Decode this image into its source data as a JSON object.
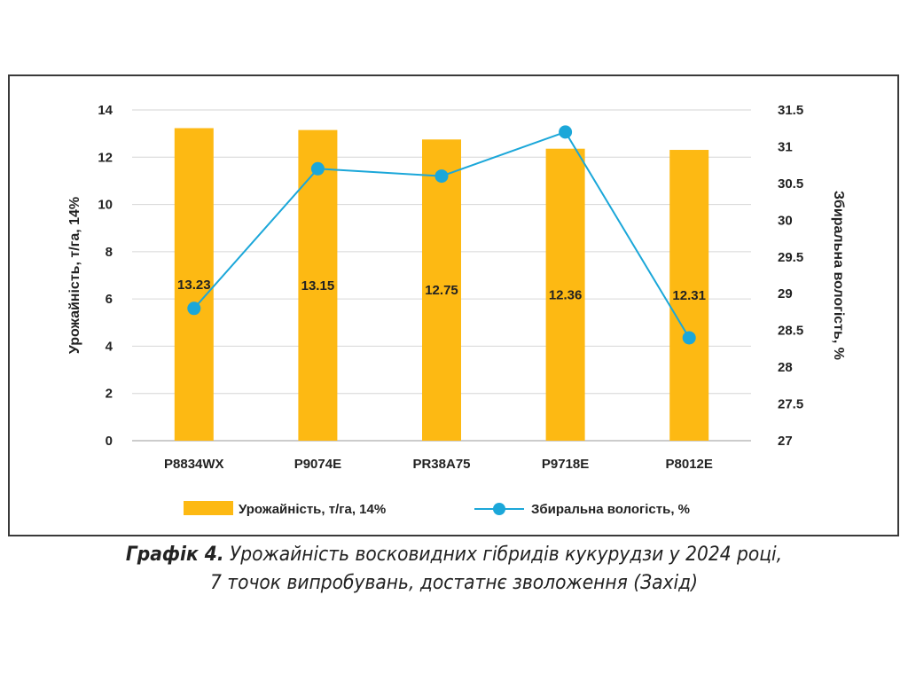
{
  "chart_data": {
    "type": "bar",
    "categories": [
      "P8834WX",
      "P9074E",
      "PR38A75",
      "P9718E",
      "P8012E"
    ],
    "series": [
      {
        "name": "Урожайність, т/га, 14%",
        "type": "bar",
        "axis": "left",
        "color": "#FDB913",
        "values": [
          13.23,
          13.15,
          12.75,
          12.36,
          12.31
        ],
        "data_labels": [
          "13.23",
          "13.15",
          "12.75",
          "12.36",
          "12.31"
        ]
      },
      {
        "name": "Збиральна вологість, %",
        "type": "line",
        "axis": "right",
        "color": "#1BA7D9",
        "values": [
          28.8,
          30.7,
          30.6,
          31.2,
          28.4
        ]
      }
    ],
    "ylabel": "Урожайність, т/га, 14%",
    "ylabel_right": "Збиральна вологість, %",
    "ylim": [
      0,
      14
    ],
    "ylim_right": [
      27,
      31.5
    ],
    "yticks": [
      "0",
      "2",
      "4",
      "6",
      "8",
      "10",
      "12",
      "14"
    ],
    "yticks_right": [
      "27",
      "27.5",
      "28",
      "28.5",
      "29",
      "29.5",
      "30",
      "30.5",
      "31",
      "31.5"
    ],
    "grid": true,
    "legend": "bottom"
  },
  "caption": {
    "prefix": "Графік 4.",
    "line1": "Урожайність восковидних гібридів кукурудзи у 2024 році,",
    "line2": "7 точок випробувань, достатнє зволоження (Захід)"
  }
}
